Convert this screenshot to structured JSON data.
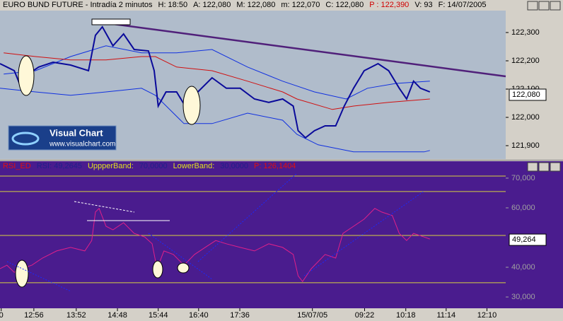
{
  "chart_data": [
    {
      "type": "line",
      "title": "EURO BUND FUTURE - Intradía 2 minutos",
      "info": [
        "H: 18:50",
        "A: 122,080",
        "M: 122,080",
        "m: 122,070",
        "C: 122,080",
        "P : 122,390",
        "V: 93",
        "F: 14/07/2005"
      ],
      "logo": [
        "Visual Chart",
        "www.visualchart.com"
      ],
      "xlim": [
        0,
        124
      ],
      "ylim": [
        121.8525,
        122.3775
      ],
      "yticks": [
        {
          "value": 121.9,
          "label": "121,900"
        },
        {
          "value": 122.0,
          "label": "122,000"
        },
        {
          "value": 122.1,
          "label": "122,100"
        },
        {
          "value": 122.2,
          "label": "122,200"
        },
        {
          "value": 122.3,
          "label": "122,300"
        }
      ],
      "last": {
        "value": 122.08,
        "label": "122,080"
      },
      "series": [
        {
          "color": "#1030e0",
          "x": [
            0.9,
            8.7,
            17.3,
            26,
            34.7,
            43.3,
            52,
            60.7,
            69.3,
            77.1,
            84.9,
            90.1,
            97.1,
            105.4
          ],
          "values": [
            122.153,
            122.165,
            122.215,
            122.253,
            122.228,
            122.228,
            122.24,
            122.178,
            122.128,
            122.09,
            122.065,
            122.103,
            122.12,
            122.128
          ]
        },
        {
          "color": "#1030e0",
          "x": [
            0,
            8.7,
            17.3,
            26,
            34.7,
            38.1,
            45.1,
            52,
            60.7,
            69.3,
            72.8,
            78,
            86.7,
            97.1,
            104,
            105.4
          ],
          "values": [
            122.103,
            122.09,
            122.078,
            122.09,
            122.103,
            122.078,
            121.978,
            121.978,
            122.015,
            121.99,
            121.94,
            121.903,
            121.878,
            121.878,
            121.878,
            121.883
          ]
        },
        {
          "color": "#d01010",
          "x": [
            0.9,
            8.7,
            17.3,
            26,
            34.7,
            38.1,
            43.3,
            52,
            60.7,
            69.3,
            72.8,
            81.5,
            86.7,
            95.3,
            105.4
          ],
          "values": [
            122.228,
            122.215,
            122.203,
            122.203,
            122.215,
            122.215,
            122.178,
            122.165,
            122.128,
            122.09,
            122.065,
            122.028,
            122.04,
            122.053,
            122.065
          ]
        },
        {
          "color": "#0a0a9a",
          "x": [
            0,
            1.7,
            3.5,
            4.9,
            6.9,
            9.5,
            13,
            17.3,
            21.7,
            23.4,
            25.1,
            27.7,
            30.3,
            32.9,
            36.4,
            37.8,
            38.8,
            40.7,
            43.3,
            45.4,
            48.5,
            52,
            55.5,
            58.9,
            62.4,
            65.9,
            69.3,
            71.9,
            73.1,
            74.9,
            77.1,
            79.7,
            82.3,
            84.4,
            86.7,
            89.3,
            92.7,
            95.3,
            97.9,
            99.7,
            101.4,
            103.1,
            105.4
          ],
          "values": [
            122.19,
            122.178,
            122.165,
            122.115,
            122.153,
            122.178,
            122.195,
            122.185,
            122.165,
            122.29,
            122.32,
            122.253,
            122.295,
            122.24,
            122.235,
            122.165,
            122.04,
            122.09,
            122.09,
            122.04,
            122.09,
            122.14,
            122.103,
            122.103,
            122.065,
            122.053,
            122.065,
            122.04,
            121.953,
            121.928,
            121.953,
            121.97,
            121.97,
            122.04,
            122.103,
            122.165,
            122.19,
            122.165,
            122.103,
            122.065,
            122.128,
            122.103,
            122.09
          ]
        }
      ]
    },
    {
      "type": "line",
      "info": [
        "RSI_ED",
        "RSI: 49,2645",
        "UppperBand:",
        "70,0000",
        "LowerBand:",
        "30,0000",
        "P: 126,1404"
      ],
      "xlim": [
        0,
        124
      ],
      "xticks": [
        {
          "value": 0.3,
          "label": "0"
        },
        {
          "value": 8.3,
          "label": "12:56"
        },
        {
          "value": 18.7,
          "label": "13:52"
        },
        {
          "value": 28.8,
          "label": "14:48"
        },
        {
          "value": 38.8,
          "label": "15:44"
        },
        {
          "value": 48.7,
          "label": "16:40"
        },
        {
          "value": 58.8,
          "label": "17:36"
        },
        {
          "value": 76.6,
          "label": "15/07/05"
        },
        {
          "value": 89.4,
          "label": "09:22"
        },
        {
          "value": 99.5,
          "label": "10:18"
        },
        {
          "value": 109.4,
          "label": "11:14"
        },
        {
          "value": 119.4,
          "label": "12:10"
        }
      ],
      "ylim": [
        26.2,
        75.7
      ],
      "yticks": [
        {
          "value": 30,
          "label": "30,000"
        },
        {
          "value": 40,
          "label": "40,000"
        },
        {
          "value": 60,
          "label": "60,000"
        },
        {
          "value": 70,
          "label": "70,000"
        }
      ],
      "levels": [
        70.7,
        65.5,
        50.7,
        34.8
      ],
      "last": {
        "value": 49.264,
        "label": "49,264"
      },
      "series": [
        {
          "name": "RSI_ED",
          "color": "#e0208a",
          "x": [
            0,
            1.7,
            3.5,
            5.2,
            7.8,
            10.4,
            13.9,
            17.3,
            20.8,
            22.5,
            23.4,
            24.3,
            26,
            27.7,
            30.3,
            32.9,
            35.5,
            37.3,
            38.5,
            40.2,
            42.5,
            45.1,
            47.7,
            50.3,
            52.9,
            55.5,
            58.9,
            62.4,
            65.9,
            69.3,
            71.9,
            73.1,
            74.2,
            76.3,
            79.7,
            82.3,
            84.1,
            86.7,
            89.3,
            91.9,
            93.6,
            96.2,
            97.9,
            99.7,
            101.4,
            104,
            105.4
          ],
          "values": [
            39.5,
            40.7,
            38.3,
            39.5,
            40.7,
            43.1,
            45.5,
            46.7,
            45.5,
            49,
            58.6,
            59.8,
            53.8,
            52.6,
            55,
            51.4,
            50.2,
            47.9,
            39.5,
            45.5,
            44.3,
            40.7,
            44.3,
            46.7,
            49,
            47.9,
            46.7,
            45.5,
            47.9,
            46.7,
            44.3,
            37.1,
            35.2,
            39.5,
            44.3,
            43.1,
            51.4,
            53.8,
            56.2,
            59.8,
            58.6,
            57.4,
            51.4,
            49,
            51.4,
            50.2,
            49.5
          ]
        }
      ]
    }
  ]
}
